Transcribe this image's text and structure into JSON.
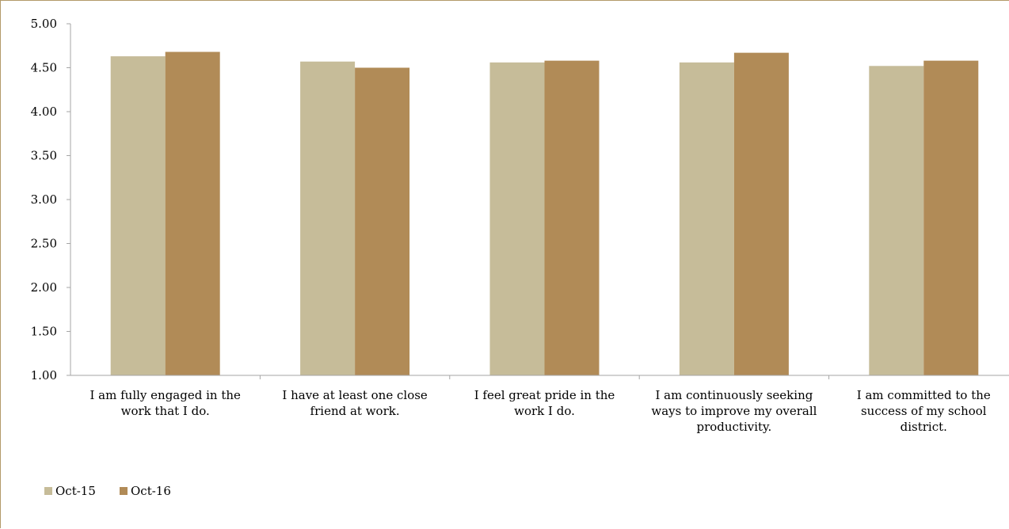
{
  "chart_data": {
    "type": "bar",
    "title": "",
    "xlabel": "",
    "ylabel": "",
    "categories": [
      [
        "I am fully engaged in the",
        "work that I do."
      ],
      [
        "I have at least one close",
        "friend at work."
      ],
      [
        "I feel great pride in the",
        "work I do."
      ],
      [
        "I am continuously seeking",
        "ways to improve my overall",
        "productivity."
      ],
      [
        "I am committed to the",
        "success of my school",
        "district."
      ]
    ],
    "series": [
      {
        "name": "Oct-15",
        "color": "#c6bc99",
        "values": [
          4.63,
          4.57,
          4.56,
          4.56,
          4.52
        ]
      },
      {
        "name": "Oct-16",
        "color": "#b18b57",
        "values": [
          4.68,
          4.5,
          4.58,
          4.67,
          4.58
        ]
      }
    ],
    "ylim": [
      1.0,
      5.0
    ],
    "yticks": [
      "1.00",
      "1.50",
      "2.00",
      "2.50",
      "3.00",
      "3.50",
      "4.00",
      "4.50",
      "5.00"
    ],
    "grid": false,
    "legend_position": "bottom-left",
    "axis_color": "#a6a6a6"
  }
}
